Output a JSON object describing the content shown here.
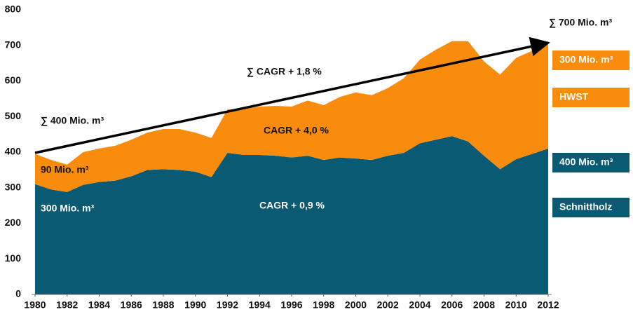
{
  "chart_data": {
    "type": "stacked_area",
    "x": [
      1980,
      1981,
      1982,
      1983,
      1984,
      1985,
      1986,
      1987,
      1988,
      1989,
      1990,
      1991,
      1992,
      1993,
      1994,
      1995,
      1996,
      1997,
      1998,
      1999,
      2000,
      2001,
      2002,
      2003,
      2004,
      2005,
      2006,
      2007,
      2008,
      2009,
      2010,
      2011,
      2012
    ],
    "series": [
      {
        "name": "Schnittholz",
        "color": "#0b5a73",
        "label": "400 Mio. m³",
        "values": [
          310,
          295,
          288,
          308,
          316,
          320,
          332,
          350,
          352,
          350,
          345,
          330,
          398,
          392,
          392,
          390,
          385,
          390,
          378,
          385,
          382,
          378,
          390,
          398,
          425,
          435,
          445,
          430,
          390,
          352,
          380,
          395,
          410
        ]
      },
      {
        "name": "HWST",
        "color": "#f98c0d",
        "label": "300 Mio. m³",
        "values": [
          85,
          83,
          77,
          92,
          94,
          98,
          103,
          105,
          113,
          115,
          110,
          110,
          122,
          130,
          136,
          140,
          143,
          155,
          154,
          170,
          186,
          182,
          190,
          210,
          235,
          253,
          267,
          282,
          265,
          266,
          285,
          290,
          302
        ]
      }
    ],
    "annotations": [
      "∑ 700 Mio. m³",
      "∑ CAGR + 1,8 %",
      "∑ 400 Mio. m³",
      "CAGR + 4,0 %",
      "90 Mio. m³",
      "300 Mio. m³",
      "CAGR + 0,9 %"
    ],
    "xlim": [
      1980,
      2012
    ],
    "xticks": [
      1980,
      1982,
      1984,
      1986,
      1988,
      1990,
      1992,
      1994,
      1996,
      1998,
      2000,
      2002,
      2004,
      2006,
      2008,
      2010,
      2012
    ],
    "ylim": [
      0,
      800
    ],
    "yticks": [
      0,
      100,
      200,
      300,
      400,
      500,
      600,
      700,
      800
    ],
    "grid": false
  }
}
